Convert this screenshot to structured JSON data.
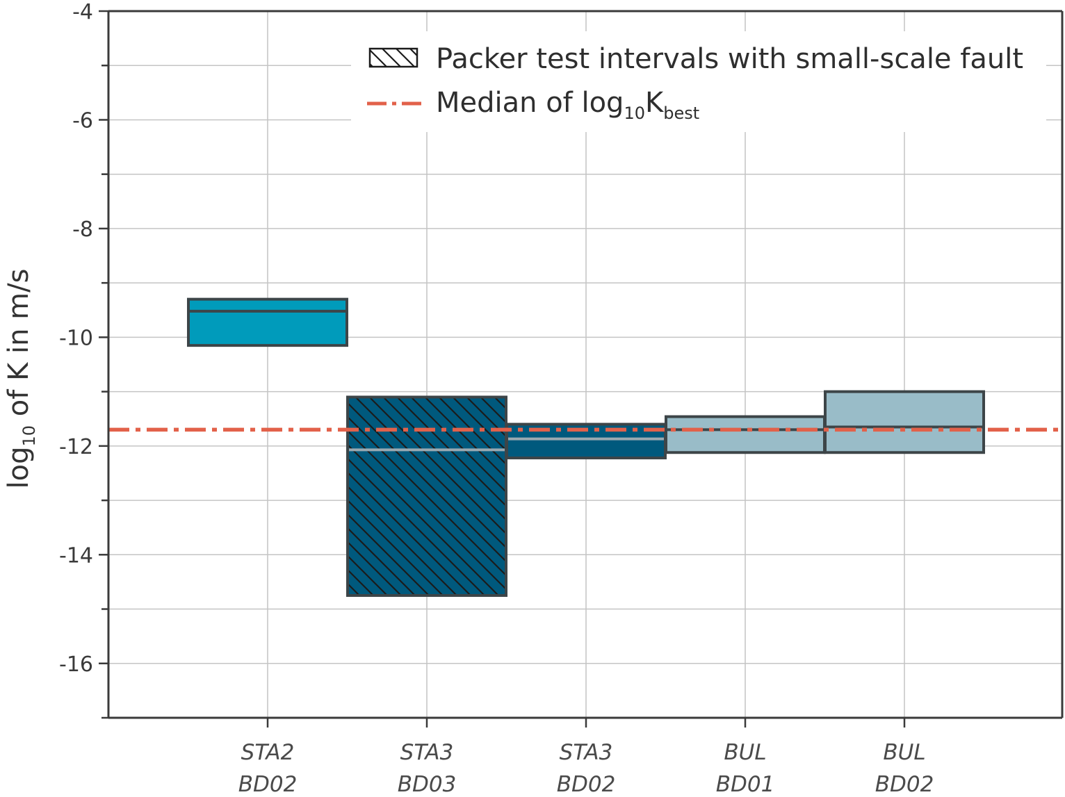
{
  "chart_data": {
    "type": "box",
    "ylabel": {
      "prefix": "log",
      "sub": "10",
      "rest": " of K in m/s"
    },
    "ylim": [
      -17,
      -4
    ],
    "yticks": [
      -4,
      -6,
      -8,
      -10,
      -12,
      -14,
      -16
    ],
    "grid": true,
    "categories": [
      {
        "line1": "STA2",
        "line2": "BD02"
      },
      {
        "line1": "STA3",
        "line2": "BD03"
      },
      {
        "line1": "STA3",
        "line2": "BD02"
      },
      {
        "line1": "BUL",
        "line2": "BD01"
      },
      {
        "line1": "BUL",
        "line2": "BD02"
      }
    ],
    "boxes": [
      {
        "q1": -10.15,
        "median": -9.52,
        "q3": -9.3,
        "color": "#009bbb",
        "median_color": "#3d4548",
        "hatched": false
      },
      {
        "q1": -14.75,
        "median": -12.07,
        "q3": -11.1,
        "color": "#00597d",
        "median_color": "#9aa9b1",
        "hatched": true
      },
      {
        "q1": -12.22,
        "median": -11.87,
        "q3": -11.6,
        "color": "#00597d",
        "median_color": "#9aa9b1",
        "hatched": false
      },
      {
        "q1": -12.12,
        "median": -11.7,
        "q3": -11.46,
        "color": "#99bcc8",
        "median_color": "#3d4548",
        "hatched": false
      },
      {
        "q1": -12.12,
        "median": -11.65,
        "q3": -11.0,
        "color": "#99bcc8",
        "median_color": "#3d4548",
        "hatched": false
      }
    ],
    "median_line": {
      "value": -11.7,
      "color": "#e2614a"
    },
    "legend": {
      "position": "top-right",
      "hatch_label": "Packer test intervals with small-scale fault",
      "median_label": {
        "prefix": "Median of log",
        "sub": "10",
        "main": "K",
        "sub2": "best"
      }
    }
  }
}
